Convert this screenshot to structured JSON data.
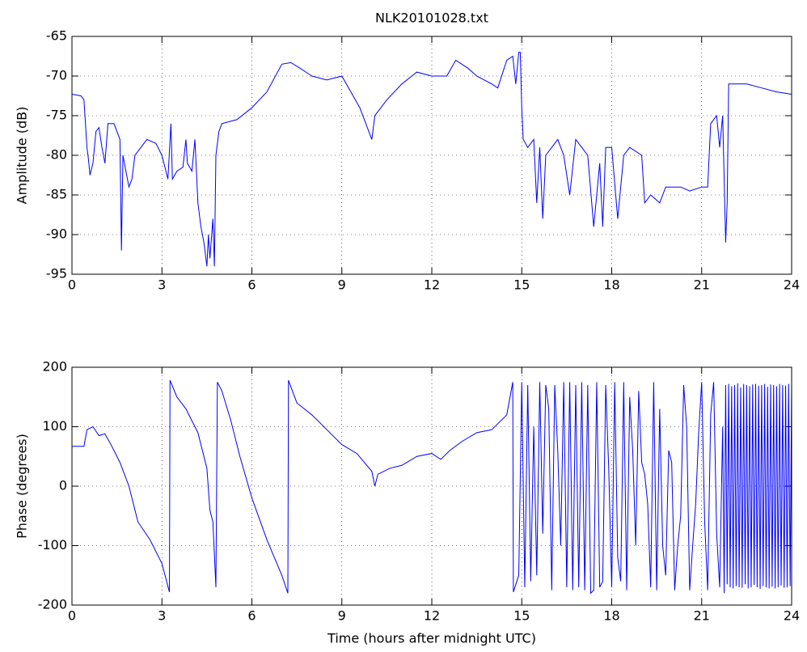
{
  "chart_data": [
    {
      "type": "line",
      "title": "NLK20101028.txt",
      "ylabel": "Amplitude (dB)",
      "color": "#0000ff",
      "grid": true,
      "xlim": [
        0,
        24
      ],
      "xticks": [
        0,
        3,
        6,
        9,
        12,
        15,
        18,
        21,
        24
      ],
      "ylim": [
        -95,
        -65
      ],
      "yticks": [
        -95,
        -90,
        -85,
        -80,
        -75,
        -70,
        -65
      ],
      "x": [
        0,
        0.3,
        0.4,
        0.45,
        0.5,
        0.55,
        0.6,
        0.7,
        0.8,
        0.9,
        1.0,
        1.1,
        1.2,
        1.4,
        1.6,
        1.65,
        1.7,
        1.8,
        1.9,
        2.0,
        2.1,
        2.3,
        2.5,
        2.8,
        3.0,
        3.2,
        3.3,
        3.35,
        3.5,
        3.7,
        3.8,
        3.85,
        4.0,
        4.1,
        4.15,
        4.2,
        4.3,
        4.4,
        4.5,
        4.55,
        4.6,
        4.7,
        4.75,
        4.8,
        4.9,
        5.0,
        5.5,
        6.0,
        6.5,
        7.0,
        7.3,
        7.6,
        8.0,
        8.5,
        9.0,
        9.3,
        9.6,
        9.9,
        10.0,
        10.1,
        10.5,
        11.0,
        11.5,
        12.0,
        12.5,
        12.8,
        13.2,
        13.5,
        14.0,
        14.2,
        14.5,
        14.7,
        14.8,
        14.9,
        14.95,
        15.0,
        15.05,
        15.2,
        15.4,
        15.5,
        15.6,
        15.7,
        15.8,
        16.0,
        16.2,
        16.4,
        16.6,
        16.8,
        17.0,
        17.2,
        17.4,
        17.6,
        17.7,
        17.8,
        18.0,
        18.2,
        18.4,
        18.6,
        19.0,
        19.1,
        19.3,
        19.6,
        19.8,
        20.0,
        20.3,
        20.6,
        21.0,
        21.2,
        21.3,
        21.5,
        21.6,
        21.7,
        21.8,
        21.85,
        21.9,
        22.5,
        23.0,
        23.5,
        24.0
      ],
      "values": [
        -72.3,
        -72.5,
        -73,
        -76,
        -79,
        -80.5,
        -82.5,
        -81,
        -77,
        -76.5,
        -79,
        -81,
        -76,
        -76,
        -78,
        -92,
        -80,
        -82,
        -84,
        -83,
        -80,
        -79,
        -78,
        -78.5,
        -80,
        -83,
        -76,
        -83,
        -82,
        -81.5,
        -78,
        -81,
        -82,
        -78,
        -82,
        -86,
        -89,
        -91,
        -94,
        -90,
        -93,
        -88,
        -94,
        -80,
        -77,
        -76,
        -75.5,
        -74,
        -72,
        -68.5,
        -68.3,
        -69,
        -70,
        -70.5,
        -70,
        -72,
        -74,
        -77,
        -78,
        -75,
        -73,
        -71,
        -69.5,
        -70,
        -70,
        -68,
        -69,
        -70,
        -71,
        -71.5,
        -68,
        -67.5,
        -71,
        -67,
        -67,
        -74,
        -78,
        -79,
        -78,
        -86,
        -79,
        -88,
        -80,
        -79,
        -78,
        -80,
        -85,
        -78,
        -79,
        -80,
        -89,
        -81,
        -89,
        -79,
        -79,
        -88,
        -80,
        -79,
        -80,
        -86,
        -85,
        -86,
        -84,
        -84,
        -84,
        -84.5,
        -84,
        -84,
        -76,
        -75,
        -79,
        -75,
        -91,
        -86,
        -71,
        -71,
        -71.5,
        -72,
        -72.3
      ]
    },
    {
      "type": "line",
      "ylabel": "Phase (degrees)",
      "xlabel": "Time (hours after midnight UTC)",
      "color": "#0000ff",
      "grid": true,
      "xlim": [
        0,
        24
      ],
      "xticks": [
        0,
        3,
        6,
        9,
        12,
        15,
        18,
        21,
        24
      ],
      "ylim": [
        -200,
        200
      ],
      "yticks": [
        -200,
        -100,
        0,
        100,
        200
      ],
      "x": [
        0,
        0.4,
        0.5,
        0.7,
        0.9,
        1.1,
        1.3,
        1.6,
        1.9,
        2.2,
        2.6,
        3.0,
        3.25,
        3.27,
        3.5,
        3.8,
        4.2,
        4.5,
        4.6,
        4.7,
        4.8,
        4.85,
        5.0,
        5.3,
        5.6,
        6.0,
        6.5,
        7.0,
        7.2,
        7.22,
        7.5,
        8.0,
        8.5,
        9.0,
        9.5,
        10.0,
        10.1,
        10.2,
        10.6,
        11.0,
        11.5,
        12.0,
        12.3,
        12.6,
        13.0,
        13.5,
        14.0,
        14.5,
        14.7,
        14.72,
        14.9,
        15.0,
        15.1,
        15.2,
        15.3,
        15.4,
        15.5,
        15.6,
        15.7,
        15.8,
        15.9,
        16.0,
        16.1,
        16.2,
        16.3,
        16.4,
        16.5,
        16.6,
        16.7,
        16.8,
        16.9,
        17.0,
        17.1,
        17.2,
        17.3,
        17.4,
        17.5,
        17.6,
        17.7,
        17.8,
        17.9,
        18.0,
        18.1,
        18.2,
        18.3,
        18.4,
        18.5,
        18.6,
        18.7,
        18.8,
        18.9,
        19.0,
        19.1,
        19.2,
        19.3,
        19.4,
        19.5,
        19.6,
        19.7,
        19.8,
        19.9,
        20.0,
        20.1,
        20.2,
        20.3,
        20.4,
        20.5,
        20.6,
        20.7,
        20.8,
        20.9,
        21.0,
        21.1,
        21.2,
        21.3,
        21.4,
        21.5,
        21.6,
        21.7,
        21.75,
        21.8,
        21.85,
        21.9,
        21.95,
        22.0,
        22.05,
        22.1,
        22.15,
        22.2,
        22.25,
        22.3,
        22.35,
        22.4,
        22.45,
        22.5,
        22.55,
        22.6,
        22.65,
        22.7,
        22.75,
        22.8,
        22.85,
        22.9,
        22.95,
        23.0,
        23.05,
        23.1,
        23.15,
        23.2,
        23.25,
        23.3,
        23.35,
        23.4,
        23.45,
        23.5,
        23.55,
        23.6,
        23.65,
        23.7,
        23.75,
        23.8,
        23.85,
        23.9,
        23.95,
        24.0
      ],
      "values": [
        67,
        67,
        95,
        100,
        85,
        88,
        70,
        40,
        0,
        -60,
        -90,
        -130,
        -178,
        178,
        150,
        130,
        90,
        30,
        -40,
        -60,
        -170,
        175,
        160,
        110,
        50,
        -20,
        -90,
        -150,
        -180,
        178,
        140,
        120,
        95,
        70,
        55,
        25,
        0,
        20,
        30,
        35,
        50,
        55,
        45,
        60,
        75,
        90,
        95,
        120,
        175,
        -178,
        -150,
        175,
        -170,
        170,
        -160,
        100,
        -150,
        175,
        -80,
        170,
        130,
        -175,
        170,
        60,
        -100,
        175,
        -170,
        175,
        -175,
        170,
        -170,
        175,
        -175,
        170,
        -180,
        -175,
        175,
        -170,
        -160,
        170,
        30,
        -170,
        175,
        -120,
        -160,
        175,
        -175,
        150,
        60,
        -100,
        160,
        40,
        20,
        -30,
        -170,
        175,
        -175,
        130,
        -100,
        -150,
        60,
        40,
        -175,
        -100,
        -50,
        170,
        100,
        -175,
        -100,
        -30,
        90,
        175,
        -60,
        -175,
        120,
        175,
        -80,
        -170,
        100,
        -180,
        170,
        -165,
        172,
        -170,
        168,
        -172,
        170,
        -168,
        173,
        -170,
        166,
        -171,
        172,
        -165,
        170,
        -172,
        168,
        -170,
        171,
        -166,
        172,
        -170,
        169,
        -173,
        170,
        -168,
        172,
        -170,
        167,
        -172,
        171,
        -169,
        170,
        -172,
        168,
        -170,
        172,
        -167,
        170,
        -171,
        169,
        -170,
        172,
        -168,
        170
      ]
    }
  ]
}
